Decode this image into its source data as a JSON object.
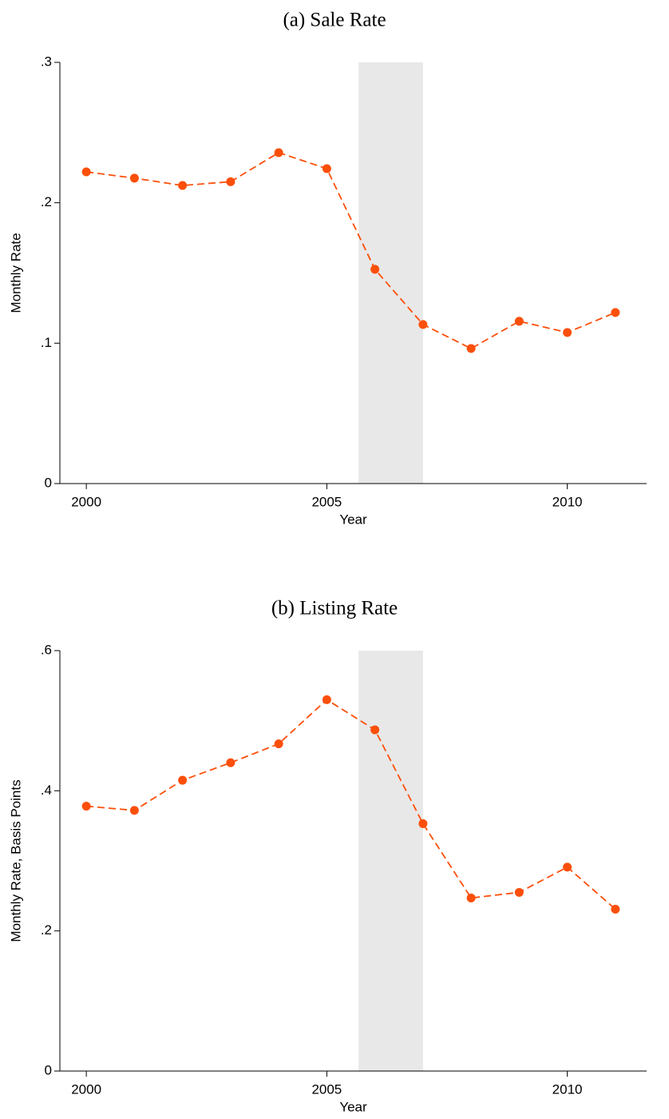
{
  "chart_data": [
    {
      "type": "line",
      "title": "(a) Sale Rate",
      "x_label": "Year",
      "y_label": "Monthly Rate",
      "x": [
        2000,
        2001,
        2002,
        2003,
        2004,
        2005,
        2006,
        2007,
        2008,
        2009,
        2010,
        2011
      ],
      "series": [
        {
          "color": "#fc4f0a",
          "values": [
            0.222,
            0.2175,
            0.2123,
            0.215,
            0.2357,
            0.2243,
            0.1526,
            0.1133,
            0.0962,
            0.1156,
            0.1076,
            0.1218
          ]
        }
      ],
      "shade": {
        "x": [
          2005.66,
          2007.0
        ],
        "color": "#e8e8e8"
      },
      "xlim": [
        1999.45,
        2011.65
      ],
      "xticks": [
        2000,
        2005,
        2010
      ],
      "ylim": [
        0,
        0.3
      ],
      "yticks": [
        0,
        {
          "value": 0.1,
          "label": ".1"
        },
        {
          "value": 0.2,
          "label": ".2"
        },
        {
          "value": 0.3,
          "label": ".3"
        }
      ]
    },
    {
      "type": "line",
      "title": "(b) Listing Rate",
      "x_label": "Year",
      "y_label": "Monthly Rate, Basis Points",
      "x": [
        2000,
        2001,
        2002,
        2003,
        2004,
        2005,
        2006,
        2007,
        2008,
        2009,
        2010,
        2011
      ],
      "series": [
        {
          "color": "#fc4f0a",
          "values": [
            0.378,
            0.372,
            0.415,
            0.44,
            0.467,
            0.53,
            0.487,
            0.353,
            0.247,
            0.255,
            0.291,
            0.231
          ]
        }
      ],
      "shade": {
        "x": [
          2005.66,
          2007.0
        ],
        "color": "#e8e8e8"
      },
      "xlim": [
        1999.45,
        2011.65
      ],
      "xticks": [
        2000,
        2005,
        2010
      ],
      "ylim": [
        0,
        0.6
      ],
      "yticks": [
        0,
        {
          "value": 0.2,
          "label": ".2"
        },
        {
          "value": 0.4,
          "label": ".4"
        },
        {
          "value": 0.6,
          "label": ".6"
        }
      ]
    }
  ]
}
